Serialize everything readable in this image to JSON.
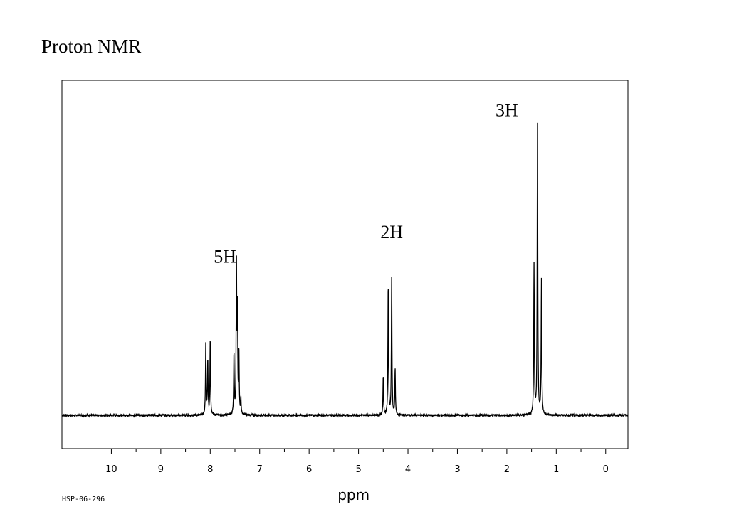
{
  "title": "Proton NMR",
  "chart_data": {
    "type": "line",
    "xlabel": "ppm",
    "ylabel": "",
    "xlim": [
      11,
      -0.45
    ],
    "x_reversed": true,
    "ylim": [
      -0.18,
      1.0
    ],
    "x_ticks": [
      10,
      9,
      8,
      7,
      6,
      5,
      4,
      3,
      2,
      1,
      0
    ],
    "footnote": "HSP-06-296",
    "series": [
      {
        "peaks": [
          {
            "ppm": 8.09,
            "height": 0.24
          },
          {
            "ppm": 8.05,
            "height": 0.18
          },
          {
            "ppm": 8.0,
            "height": 0.25
          },
          {
            "ppm": 7.52,
            "height": 0.2
          },
          {
            "ppm": 7.47,
            "height": 0.5
          },
          {
            "ppm": 7.45,
            "height": 0.32
          },
          {
            "ppm": 7.42,
            "height": 0.2
          },
          {
            "ppm": 7.38,
            "height": 0.05
          },
          {
            "ppm": 4.5,
            "height": 0.13
          },
          {
            "ppm": 4.4,
            "height": 0.43
          },
          {
            "ppm": 4.33,
            "height": 0.45
          },
          {
            "ppm": 4.26,
            "height": 0.15
          },
          {
            "ppm": 1.45,
            "height": 0.49
          },
          {
            "ppm": 1.38,
            "height": 1.0
          },
          {
            "ppm": 1.3,
            "height": 0.44
          }
        ]
      }
    ],
    "annotations": [
      {
        "text": "5H",
        "ppm": 7.7,
        "height": 0.5
      },
      {
        "text": "2H",
        "ppm": 4.33,
        "height": 0.58
      },
      {
        "text": "3H",
        "ppm": 2.0,
        "height": 0.98
      }
    ]
  }
}
